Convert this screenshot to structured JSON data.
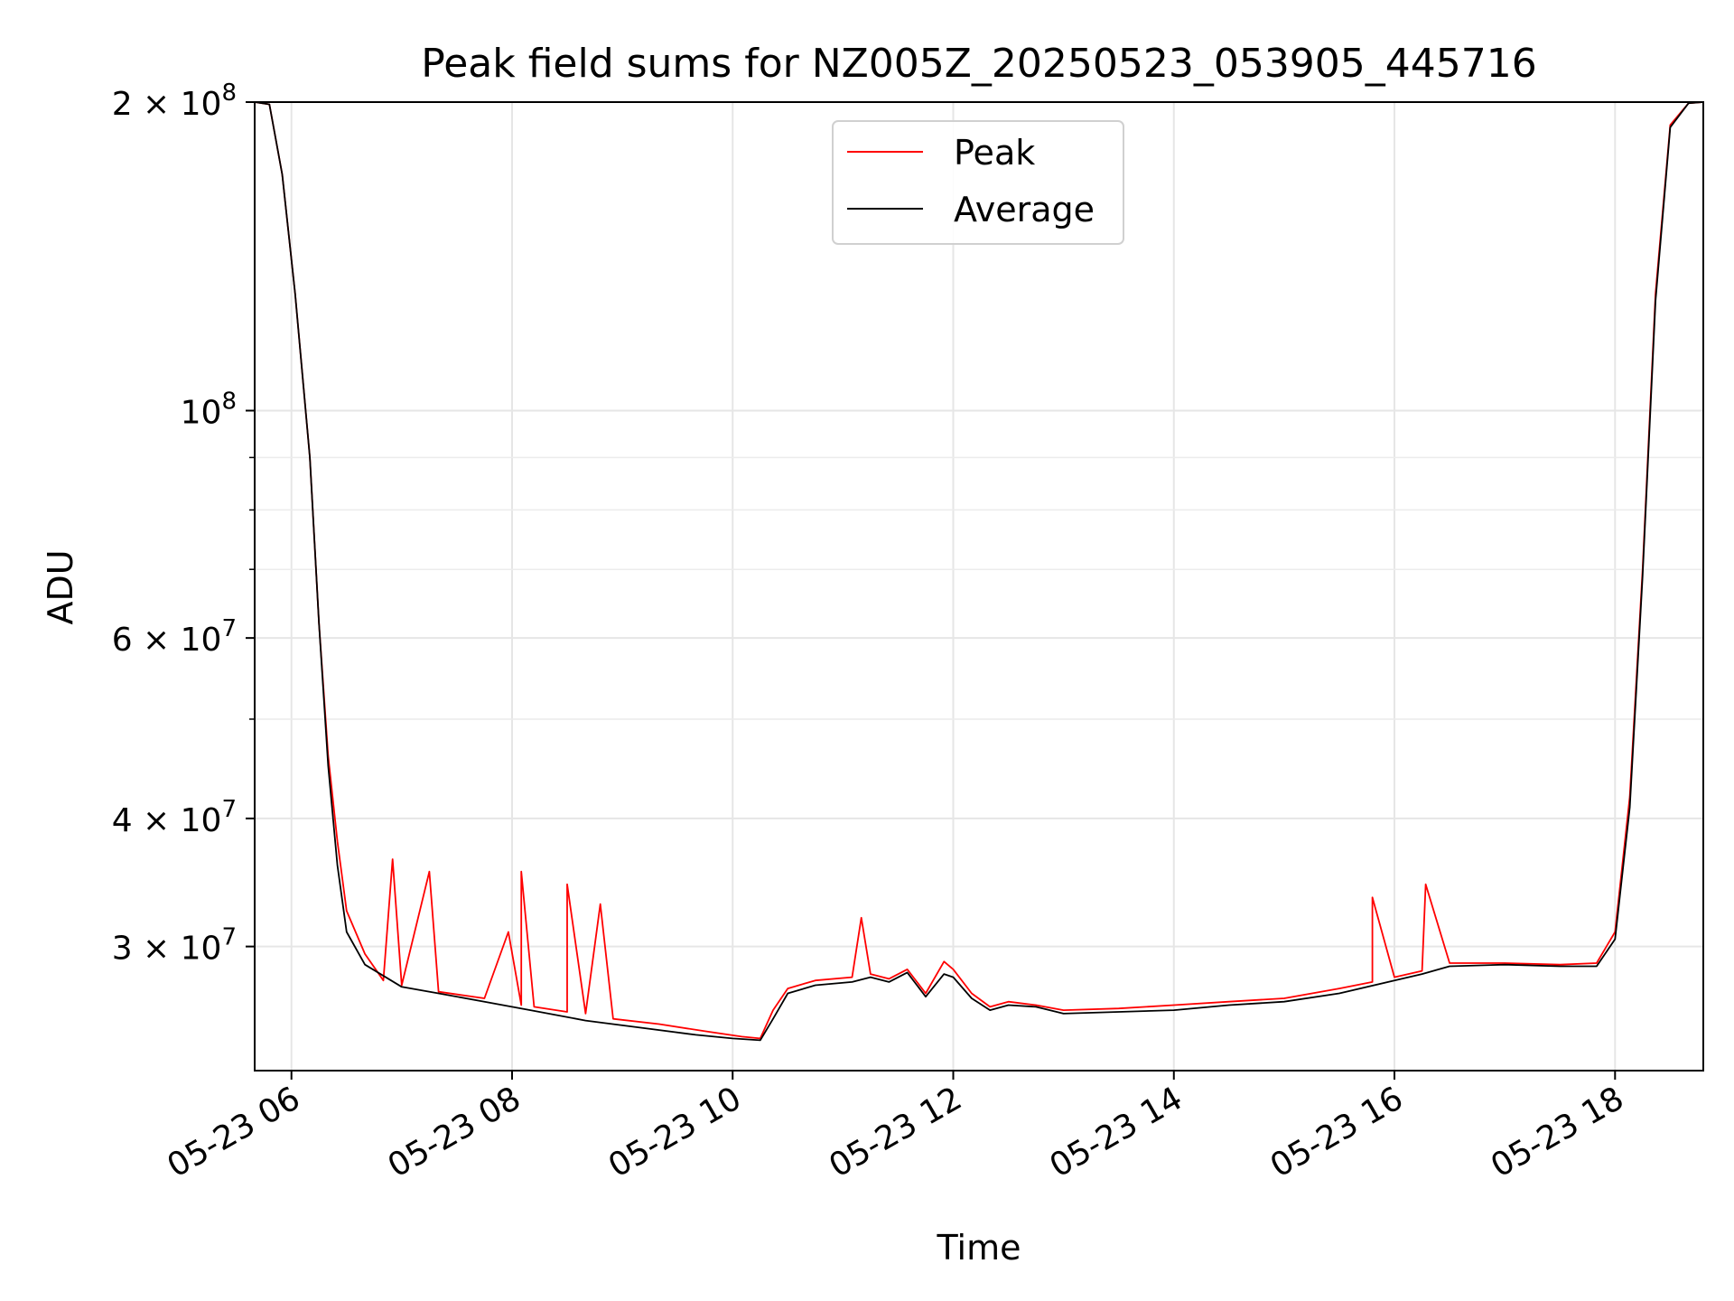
{
  "chart_data": {
    "type": "line",
    "title": "Peak field sums for NZ005Z_20250523_053905_445716",
    "xlabel": "Time",
    "ylabel": "ADU",
    "y_scale": "log",
    "ylim": [
      22700000,
      200000000
    ],
    "xlim": [
      "2025-05-23 05:40",
      "2025-05-23 18:48"
    ],
    "grid": true,
    "legend_position": "top-center",
    "x_ticks": [
      {
        "t": "2025-05-23 06:00",
        "label": "05-23 06"
      },
      {
        "t": "2025-05-23 08:00",
        "label": "05-23 08"
      },
      {
        "t": "2025-05-23 10:00",
        "label": "05-23 10"
      },
      {
        "t": "2025-05-23 12:00",
        "label": "05-23 12"
      },
      {
        "t": "2025-05-23 14:00",
        "label": "05-23 14"
      },
      {
        "t": "2025-05-23 16:00",
        "label": "05-23 16"
      },
      {
        "t": "2025-05-23 18:00",
        "label": "05-23 18"
      }
    ],
    "y_ticks": [
      {
        "v": 30000000,
        "base": "3 × 10",
        "exp": "7"
      },
      {
        "v": 40000000,
        "base": "4 × 10",
        "exp": "7"
      },
      {
        "v": 60000000,
        "base": "6 × 10",
        "exp": "7"
      },
      {
        "v": 100000000,
        "base": "10",
        "exp": "8"
      },
      {
        "v": 200000000,
        "base": "2 × 10",
        "exp": "8"
      }
    ],
    "y_minor_ticks": [
      50000000,
      70000000,
      80000000,
      90000000
    ],
    "series": [
      {
        "name": "Peak",
        "color": "#ff0000",
        "points": [
          [
            "2025-05-23 05:40",
            200000000
          ],
          [
            "2025-05-23 05:48",
            199000000
          ],
          [
            "2025-05-23 05:55",
            170000000
          ],
          [
            "2025-05-23 06:02",
            130000000
          ],
          [
            "2025-05-23 06:10",
            90000000
          ],
          [
            "2025-05-23 06:15",
            62000000
          ],
          [
            "2025-05-23 06:20",
            46000000
          ],
          [
            "2025-05-23 06:25",
            38000000
          ],
          [
            "2025-05-23 06:30",
            32500000
          ],
          [
            "2025-05-23 06:40",
            29500000
          ],
          [
            "2025-05-23 06:50",
            27800000
          ],
          [
            "2025-05-23 06:55",
            36500000
          ],
          [
            "2025-05-23 07:00",
            27500000
          ],
          [
            "2025-05-23 07:15",
            35500000
          ],
          [
            "2025-05-23 07:20",
            27100000
          ],
          [
            "2025-05-23 07:45",
            26700000
          ],
          [
            "2025-05-23 07:58",
            31000000
          ],
          [
            "2025-05-23 08:05",
            26300000
          ],
          [
            "2025-05-23 08:05",
            35500000
          ],
          [
            "2025-05-23 08:12",
            26200000
          ],
          [
            "2025-05-23 08:30",
            25900000
          ],
          [
            "2025-05-23 08:30",
            34500000
          ],
          [
            "2025-05-23 08:40",
            25800000
          ],
          [
            "2025-05-23 08:48",
            33000000
          ],
          [
            "2025-05-23 08:55",
            25500000
          ],
          [
            "2025-05-23 09:20",
            25200000
          ],
          [
            "2025-05-23 09:45",
            24800000
          ],
          [
            "2025-05-23 10:05",
            24500000
          ],
          [
            "2025-05-23 10:15",
            24400000
          ],
          [
            "2025-05-23 10:22",
            26000000
          ],
          [
            "2025-05-23 10:30",
            27300000
          ],
          [
            "2025-05-23 10:45",
            27800000
          ],
          [
            "2025-05-23 11:05",
            28000000
          ],
          [
            "2025-05-23 11:10",
            32000000
          ],
          [
            "2025-05-23 11:15",
            28200000
          ],
          [
            "2025-05-23 11:25",
            27900000
          ],
          [
            "2025-05-23 11:35",
            28500000
          ],
          [
            "2025-05-23 11:45",
            27000000
          ],
          [
            "2025-05-23 11:55",
            29000000
          ],
          [
            "2025-05-23 12:00",
            28500000
          ],
          [
            "2025-05-23 12:10",
            27000000
          ],
          [
            "2025-05-23 12:20",
            26200000
          ],
          [
            "2025-05-23 12:30",
            26500000
          ],
          [
            "2025-05-23 12:45",
            26300000
          ],
          [
            "2025-05-23 13:00",
            26000000
          ],
          [
            "2025-05-23 13:30",
            26100000
          ],
          [
            "2025-05-23 14:00",
            26300000
          ],
          [
            "2025-05-23 14:30",
            26500000
          ],
          [
            "2025-05-23 15:00",
            26700000
          ],
          [
            "2025-05-23 15:30",
            27300000
          ],
          [
            "2025-05-23 15:48",
            27700000
          ],
          [
            "2025-05-23 15:48",
            33500000
          ],
          [
            "2025-05-23 16:00",
            28000000
          ],
          [
            "2025-05-23 16:15",
            28400000
          ],
          [
            "2025-05-23 16:17",
            34500000
          ],
          [
            "2025-05-23 16:30",
            28900000
          ],
          [
            "2025-05-23 17:00",
            28900000
          ],
          [
            "2025-05-23 17:30",
            28800000
          ],
          [
            "2025-05-23 17:50",
            28900000
          ],
          [
            "2025-05-23 18:00",
            31000000
          ],
          [
            "2025-05-23 18:08",
            42000000
          ],
          [
            "2025-05-23 18:15",
            70000000
          ],
          [
            "2025-05-23 18:22",
            130000000
          ],
          [
            "2025-05-23 18:30",
            190000000
          ],
          [
            "2025-05-23 18:40",
            199500000
          ],
          [
            "2025-05-23 18:48",
            200000000
          ]
        ]
      },
      {
        "name": "Average",
        "color": "#000000",
        "points": [
          [
            "2025-05-23 05:40",
            200000000
          ],
          [
            "2025-05-23 05:48",
            199000000
          ],
          [
            "2025-05-23 05:55",
            170000000
          ],
          [
            "2025-05-23 06:02",
            130000000
          ],
          [
            "2025-05-23 06:10",
            90000000
          ],
          [
            "2025-05-23 06:15",
            62000000
          ],
          [
            "2025-05-23 06:20",
            45000000
          ],
          [
            "2025-05-23 06:25",
            36000000
          ],
          [
            "2025-05-23 06:30",
            31000000
          ],
          [
            "2025-05-23 06:40",
            28800000
          ],
          [
            "2025-05-23 07:00",
            27400000
          ],
          [
            "2025-05-23 07:20",
            27000000
          ],
          [
            "2025-05-23 07:45",
            26500000
          ],
          [
            "2025-05-23 08:10",
            26000000
          ],
          [
            "2025-05-23 08:40",
            25400000
          ],
          [
            "2025-05-23 09:10",
            25000000
          ],
          [
            "2025-05-23 09:40",
            24600000
          ],
          [
            "2025-05-23 10:00",
            24400000
          ],
          [
            "2025-05-23 10:15",
            24300000
          ],
          [
            "2025-05-23 10:22",
            25500000
          ],
          [
            "2025-05-23 10:30",
            27000000
          ],
          [
            "2025-05-23 10:45",
            27500000
          ],
          [
            "2025-05-23 11:05",
            27700000
          ],
          [
            "2025-05-23 11:15",
            28000000
          ],
          [
            "2025-05-23 11:25",
            27700000
          ],
          [
            "2025-05-23 11:35",
            28300000
          ],
          [
            "2025-05-23 11:45",
            26800000
          ],
          [
            "2025-05-23 11:55",
            28200000
          ],
          [
            "2025-05-23 12:00",
            28000000
          ],
          [
            "2025-05-23 12:10",
            26700000
          ],
          [
            "2025-05-23 12:20",
            26000000
          ],
          [
            "2025-05-23 12:30",
            26300000
          ],
          [
            "2025-05-23 12:45",
            26200000
          ],
          [
            "2025-05-23 13:00",
            25800000
          ],
          [
            "2025-05-23 13:30",
            25900000
          ],
          [
            "2025-05-23 14:00",
            26000000
          ],
          [
            "2025-05-23 14:30",
            26300000
          ],
          [
            "2025-05-23 15:00",
            26500000
          ],
          [
            "2025-05-23 15:30",
            27000000
          ],
          [
            "2025-05-23 16:00",
            27800000
          ],
          [
            "2025-05-23 16:15",
            28200000
          ],
          [
            "2025-05-23 16:30",
            28700000
          ],
          [
            "2025-05-23 17:00",
            28800000
          ],
          [
            "2025-05-23 17:30",
            28700000
          ],
          [
            "2025-05-23 17:50",
            28700000
          ],
          [
            "2025-05-23 18:00",
            30500000
          ],
          [
            "2025-05-23 18:08",
            41000000
          ],
          [
            "2025-05-23 18:15",
            69000000
          ],
          [
            "2025-05-23 18:22",
            128000000
          ],
          [
            "2025-05-23 18:30",
            189000000
          ],
          [
            "2025-05-23 18:40",
            199500000
          ],
          [
            "2025-05-23 18:48",
            200000000
          ]
        ]
      }
    ]
  }
}
